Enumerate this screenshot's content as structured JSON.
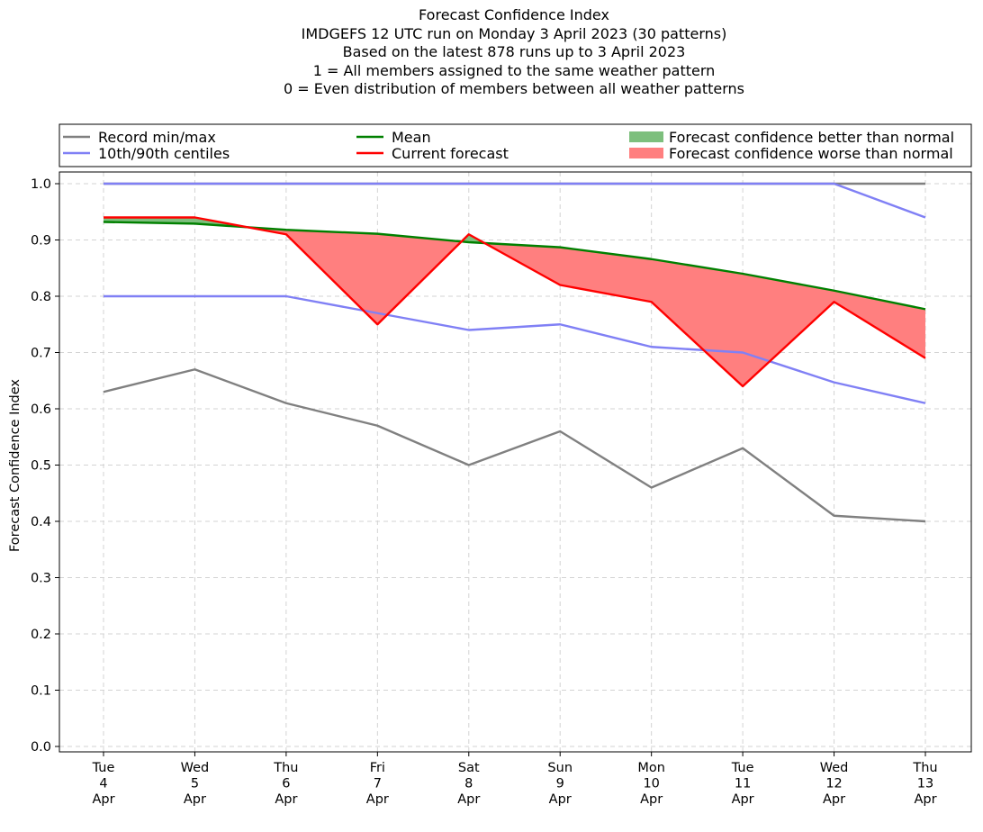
{
  "chart_data": {
    "type": "line",
    "title_lines": [
      "Forecast Confidence Index",
      "IMDGEFS 12 UTC run on Monday 3 April 2023 (30 patterns)",
      "Based on the latest 878 runs up to 3 April 2023",
      "1 = All members assigned to the same weather pattern",
      "0 = Even distribution of members between all weather patterns"
    ],
    "ylabel": "Forecast Confidence Index",
    "xlabel": "",
    "ylim": [
      0.0,
      1.0
    ],
    "yticks": [
      "0.0",
      "0.1",
      "0.2",
      "0.3",
      "0.4",
      "0.5",
      "0.6",
      "0.7",
      "0.8",
      "0.9",
      "1.0"
    ],
    "grid": true,
    "legend_position": "top, above plot",
    "categories": [
      [
        "Tue",
        "4",
        "Apr"
      ],
      [
        "Wed",
        "5",
        "Apr"
      ],
      [
        "Thu",
        "6",
        "Apr"
      ],
      [
        "Fri",
        "7",
        "Apr"
      ],
      [
        "Sat",
        "8",
        "Apr"
      ],
      [
        "Sun",
        "9",
        "Apr"
      ],
      [
        "Mon",
        "10",
        "Apr"
      ],
      [
        "Tue",
        "11",
        "Apr"
      ],
      [
        "Wed",
        "12",
        "Apr"
      ],
      [
        "Thu",
        "13",
        "Apr"
      ]
    ],
    "series": [
      {
        "name": "Record min/max",
        "role": "record_min",
        "color": "#808080",
        "values": [
          0.63,
          0.67,
          0.61,
          0.57,
          0.5,
          0.56,
          0.46,
          0.53,
          0.41,
          0.4
        ]
      },
      {
        "name": "Record min/max",
        "role": "record_max",
        "color": "#808080",
        "values": [
          1.0,
          1.0,
          1.0,
          1.0,
          1.0,
          1.0,
          1.0,
          1.0,
          1.0,
          1.0
        ]
      },
      {
        "name": "10th/90th centiles",
        "role": "p10",
        "color": "#8080f5",
        "values": [
          0.8,
          0.8,
          0.8,
          0.77,
          0.74,
          0.75,
          0.71,
          0.7,
          0.647,
          0.61
        ]
      },
      {
        "name": "10th/90th centiles",
        "role": "p90",
        "color": "#8080f5",
        "values": [
          1.0,
          1.0,
          1.0,
          1.0,
          1.0,
          1.0,
          1.0,
          1.0,
          1.0,
          0.94
        ]
      },
      {
        "name": "Mean",
        "role": "mean",
        "color": "#008000",
        "values": [
          0.932,
          0.929,
          0.918,
          0.911,
          0.896,
          0.887,
          0.866,
          0.84,
          0.81,
          0.777
        ]
      },
      {
        "name": "Current forecast",
        "role": "current",
        "color": "#ff0000",
        "values": [
          0.94,
          0.94,
          0.91,
          0.75,
          0.91,
          0.82,
          0.79,
          0.64,
          0.79,
          0.69
        ]
      }
    ],
    "fills": [
      {
        "name": "Forecast confidence better than normal",
        "color": "#7dbf7d"
      },
      {
        "name": "Forecast confidence worse than normal",
        "color": "#ff7f7f"
      }
    ],
    "legend": [
      {
        "label": "Record min/max",
        "kind": "line",
        "color": "#808080"
      },
      {
        "label": "10th/90th centiles",
        "kind": "line",
        "color": "#8080f5"
      },
      {
        "label": "Mean",
        "kind": "line",
        "color": "#008000"
      },
      {
        "label": "Current forecast",
        "kind": "line",
        "color": "#ff0000"
      },
      {
        "label": "Forecast confidence better than normal",
        "kind": "patch",
        "color": "#7dbf7d"
      },
      {
        "label": "Forecast confidence worse than normal",
        "kind": "patch",
        "color": "#ff7f7f"
      }
    ]
  }
}
